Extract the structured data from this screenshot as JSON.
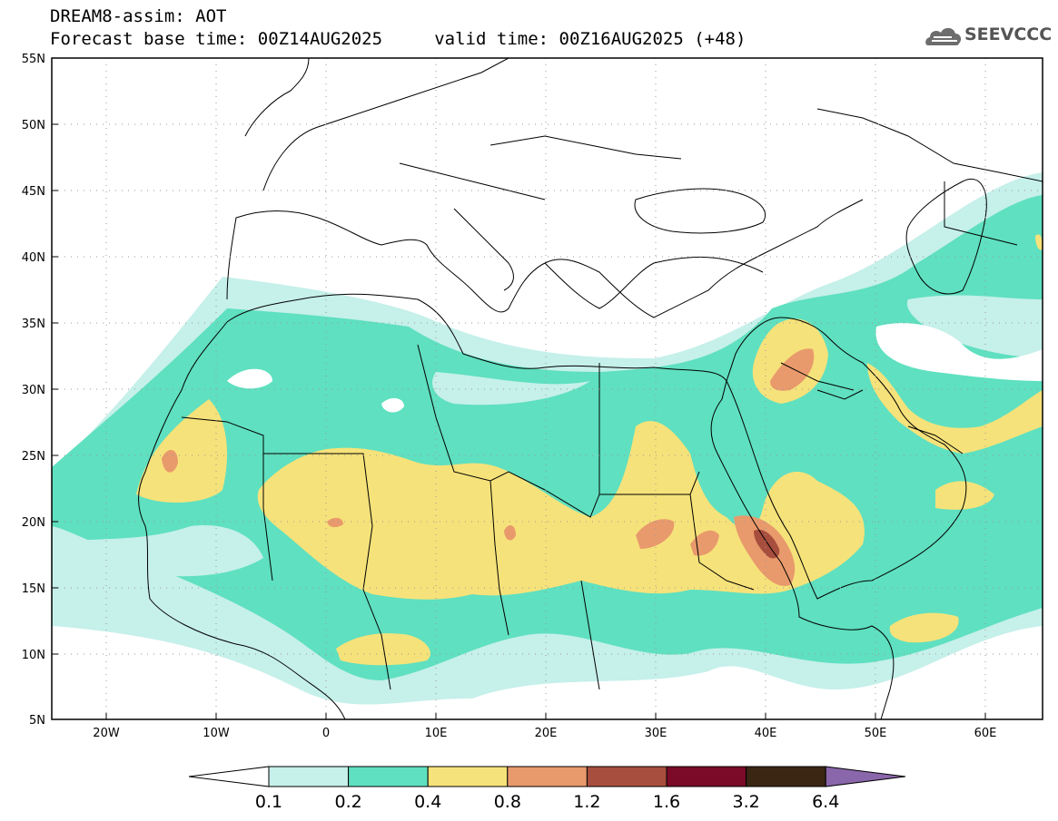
{
  "header": {
    "title": "DREAM8-assim: AOT",
    "subtitle": "Forecast base time: 00Z14AUG2025     valid time: 00Z16AUG2025 (+48)"
  },
  "logo": {
    "text": "SEEVCCC",
    "icon": "cloud-icon"
  },
  "map": {
    "lat_labels": [
      "55N",
      "50N",
      "45N",
      "40N",
      "35N",
      "30N",
      "25N",
      "20N",
      "15N",
      "10N",
      "5N"
    ],
    "lon_labels": [
      "20W",
      "10W",
      "0",
      "10E",
      "20E",
      "30E",
      "40E",
      "50E",
      "60E"
    ],
    "lat_range": [
      5,
      55
    ],
    "lon_range": [
      -25,
      65
    ]
  },
  "colorbar": {
    "labels": [
      "0.1",
      "0.2",
      "0.4",
      "0.8",
      "1.2",
      "1.6",
      "3.2",
      "6.4"
    ],
    "colors": [
      "#c6f0ea",
      "#5fe0c0",
      "#f6e27a",
      "#e89a6c",
      "#a84e3e",
      "#7a0a28",
      "#3b2614",
      "#8a66aa"
    ]
  }
}
